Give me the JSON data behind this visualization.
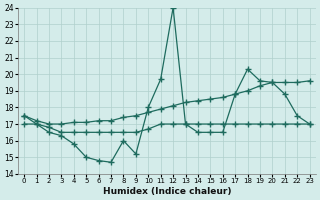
{
  "xlabel": "Humidex (Indice chaleur)",
  "x": [
    0,
    1,
    2,
    3,
    4,
    5,
    6,
    7,
    8,
    9,
    10,
    11,
    12,
    13,
    14,
    15,
    16,
    17,
    18,
    19,
    20,
    21,
    22,
    23
  ],
  "y_spike": [
    17.5,
    17.0,
    16.5,
    16.3,
    15.8,
    15.0,
    14.8,
    14.7,
    16.0,
    15.2,
    18.0,
    19.7,
    24.0,
    17.0,
    16.5,
    16.5,
    16.5,
    18.8,
    20.3,
    19.6,
    19.5,
    18.8,
    17.5,
    17.0
  ],
  "y_upper": [
    17.5,
    17.2,
    17.0,
    17.0,
    17.1,
    17.1,
    17.2,
    17.2,
    17.4,
    17.5,
    17.7,
    17.9,
    18.1,
    18.3,
    18.4,
    18.5,
    18.6,
    18.8,
    19.0,
    19.3,
    19.5,
    19.5,
    19.5,
    19.6
  ],
  "y_lower": [
    17.0,
    17.0,
    16.8,
    16.5,
    16.5,
    16.5,
    16.5,
    16.5,
    16.5,
    16.5,
    16.7,
    17.0,
    17.0,
    17.0,
    17.0,
    17.0,
    17.0,
    17.0,
    17.0,
    17.0,
    17.0,
    17.0,
    17.0,
    17.0
  ],
  "line_color": "#1e6b5e",
  "bg_color": "#d4ecea",
  "grid_color": "#b0d0cc",
  "ylim": [
    14,
    24
  ],
  "xlim": [
    -0.5,
    23.5
  ],
  "yticks": [
    14,
    15,
    16,
    17,
    18,
    19,
    20,
    21,
    22,
    23,
    24
  ],
  "xticks": [
    0,
    1,
    2,
    3,
    4,
    5,
    6,
    7,
    8,
    9,
    10,
    11,
    12,
    13,
    14,
    15,
    16,
    17,
    18,
    19,
    20,
    21,
    22,
    23
  ]
}
